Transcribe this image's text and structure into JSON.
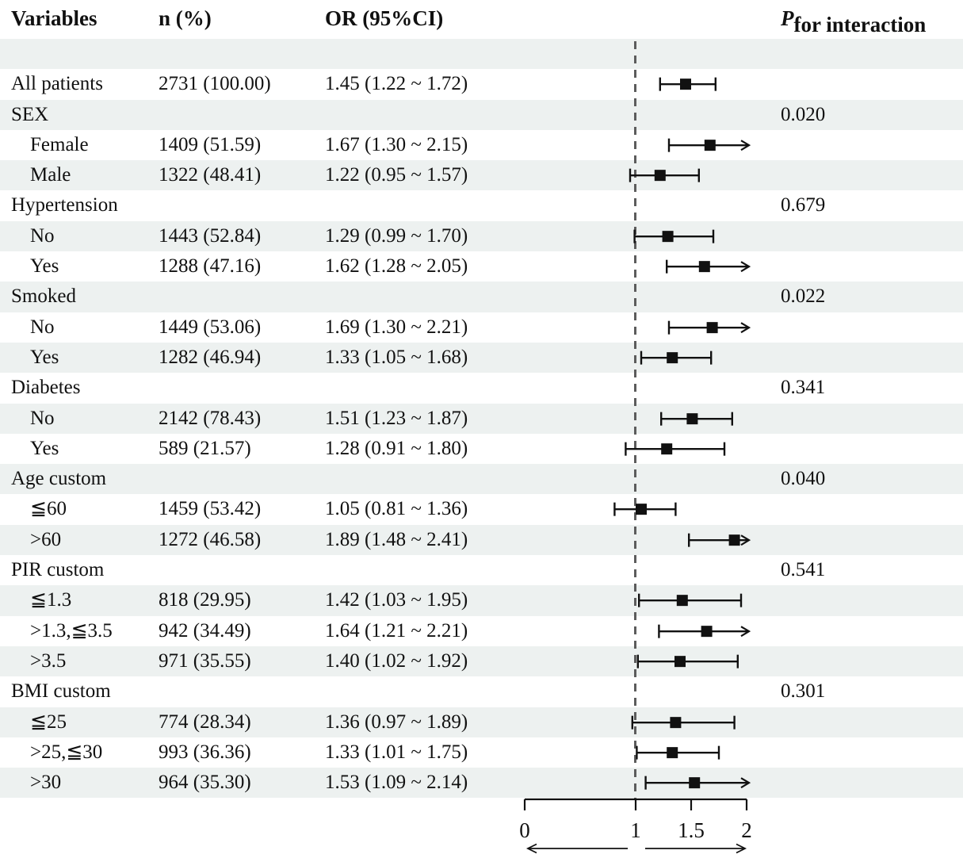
{
  "header": {
    "variables": "Variables",
    "n_pct": "n (%)",
    "or_ci": "OR (95%CI)",
    "p_italic": "P",
    "p_rest": " for interaction"
  },
  "colors": {
    "band": "#edf1f0",
    "marks": "#111111",
    "ref_line": "#5c5c5c",
    "text": "#111111",
    "background": "#ffffff"
  },
  "chart_data": {
    "type": "forest",
    "title": "",
    "xlabel": "",
    "legend": "none",
    "or_axis": {
      "tick_labels": [
        "0",
        "1",
        "1.5",
        "2"
      ],
      "tick_values": [
        0,
        1,
        1.5,
        2
      ],
      "ref_line_value": 1,
      "clip_max": 2,
      "range": [
        0,
        2
      ],
      "outward_arrows_below_axis": true
    },
    "rows": [
      {
        "label": "",
        "indent": false,
        "n_pct": "",
        "or_ci": "",
        "p": "",
        "shade": true
      },
      {
        "label": "All patients",
        "indent": false,
        "n_pct": "2731 (100.00)",
        "or_ci": "1.45 (1.22 ~ 1.72)",
        "p": "",
        "shade": false,
        "est": 1.45,
        "lo": 1.22,
        "hi": 1.72
      },
      {
        "label": "SEX",
        "indent": false,
        "n_pct": "",
        "or_ci": "",
        "p": "0.020",
        "shade": true
      },
      {
        "label": "Female",
        "indent": true,
        "n_pct": "1409 (51.59)",
        "or_ci": "1.67 (1.30 ~ 2.15)",
        "p": "",
        "shade": false,
        "est": 1.67,
        "lo": 1.3,
        "hi": 2.15
      },
      {
        "label": "Male",
        "indent": true,
        "n_pct": "1322 (48.41)",
        "or_ci": "1.22 (0.95 ~ 1.57)",
        "p": "",
        "shade": true,
        "est": 1.22,
        "lo": 0.95,
        "hi": 1.57
      },
      {
        "label": "Hypertension",
        "indent": false,
        "n_pct": "",
        "or_ci": "",
        "p": "0.679",
        "shade": false
      },
      {
        "label": "No",
        "indent": true,
        "n_pct": "1443 (52.84)",
        "or_ci": "1.29 (0.99 ~ 1.70)",
        "p": "",
        "shade": true,
        "est": 1.29,
        "lo": 0.99,
        "hi": 1.7
      },
      {
        "label": "Yes",
        "indent": true,
        "n_pct": "1288 (47.16)",
        "or_ci": "1.62 (1.28 ~ 2.05)",
        "p": "",
        "shade": false,
        "est": 1.62,
        "lo": 1.28,
        "hi": 2.05
      },
      {
        "label": "Smoked",
        "indent": false,
        "n_pct": "",
        "or_ci": "",
        "p": "0.022",
        "shade": true
      },
      {
        "label": "No",
        "indent": true,
        "n_pct": "1449 (53.06)",
        "or_ci": "1.69 (1.30 ~ 2.21)",
        "p": "",
        "shade": false,
        "est": 1.69,
        "lo": 1.3,
        "hi": 2.21
      },
      {
        "label": "Yes",
        "indent": true,
        "n_pct": "1282 (46.94)",
        "or_ci": "1.33 (1.05 ~ 1.68)",
        "p": "",
        "shade": true,
        "est": 1.33,
        "lo": 1.05,
        "hi": 1.68
      },
      {
        "label": "Diabetes",
        "indent": false,
        "n_pct": "",
        "or_ci": "",
        "p": "0.341",
        "shade": false
      },
      {
        "label": "No",
        "indent": true,
        "n_pct": "2142 (78.43)",
        "or_ci": "1.51 (1.23 ~ 1.87)",
        "p": "",
        "shade": true,
        "est": 1.51,
        "lo": 1.23,
        "hi": 1.87
      },
      {
        "label": "Yes",
        "indent": true,
        "n_pct": "589 (21.57)",
        "or_ci": "1.28 (0.91 ~ 1.80)",
        "p": "",
        "shade": false,
        "est": 1.28,
        "lo": 0.91,
        "hi": 1.8
      },
      {
        "label": "Age custom",
        "indent": false,
        "n_pct": "",
        "or_ci": "",
        "p": "0.040",
        "shade": true
      },
      {
        "label": "≦60",
        "indent": true,
        "n_pct": "1459 (53.42)",
        "or_ci": "1.05 (0.81 ~ 1.36)",
        "p": "",
        "shade": false,
        "est": 1.05,
        "lo": 0.81,
        "hi": 1.36
      },
      {
        "label": ">60",
        "indent": true,
        "n_pct": "1272 (46.58)",
        "or_ci": "1.89 (1.48 ~ 2.41)",
        "p": "",
        "shade": true,
        "est": 1.89,
        "lo": 1.48,
        "hi": 2.41
      },
      {
        "label": "PIR custom",
        "indent": false,
        "n_pct": "",
        "or_ci": "",
        "p": "0.541",
        "shade": false
      },
      {
        "label": "≦1.3",
        "indent": true,
        "n_pct": "818 (29.95)",
        "or_ci": "1.42 (1.03 ~ 1.95)",
        "p": "",
        "shade": true,
        "est": 1.42,
        "lo": 1.03,
        "hi": 1.95
      },
      {
        "label": ">1.3,≦3.5",
        "indent": true,
        "n_pct": "942 (34.49)",
        "or_ci": "1.64 (1.21 ~ 2.21)",
        "p": "",
        "shade": false,
        "est": 1.64,
        "lo": 1.21,
        "hi": 2.21
      },
      {
        "label": ">3.5",
        "indent": true,
        "n_pct": "971 (35.55)",
        "or_ci": "1.40 (1.02 ~ 1.92)",
        "p": "",
        "shade": true,
        "est": 1.4,
        "lo": 1.02,
        "hi": 1.92
      },
      {
        "label": "BMI custom",
        "indent": false,
        "n_pct": "",
        "or_ci": "",
        "p": "0.301",
        "shade": false
      },
      {
        "label": "≦25",
        "indent": true,
        "n_pct": "774 (28.34)",
        "or_ci": "1.36 (0.97 ~ 1.89)",
        "p": "",
        "shade": true,
        "est": 1.36,
        "lo": 0.97,
        "hi": 1.89
      },
      {
        "label": ">25,≦30",
        "indent": true,
        "n_pct": "993 (36.36)",
        "or_ci": "1.33 (1.01 ~ 1.75)",
        "p": "",
        "shade": false,
        "est": 1.33,
        "lo": 1.01,
        "hi": 1.75
      },
      {
        "label": ">30",
        "indent": true,
        "n_pct": "964 (35.30)",
        "or_ci": "1.53 (1.09 ~ 2.14)",
        "p": "",
        "shade": true,
        "est": 1.53,
        "lo": 1.09,
        "hi": 2.14
      }
    ]
  }
}
